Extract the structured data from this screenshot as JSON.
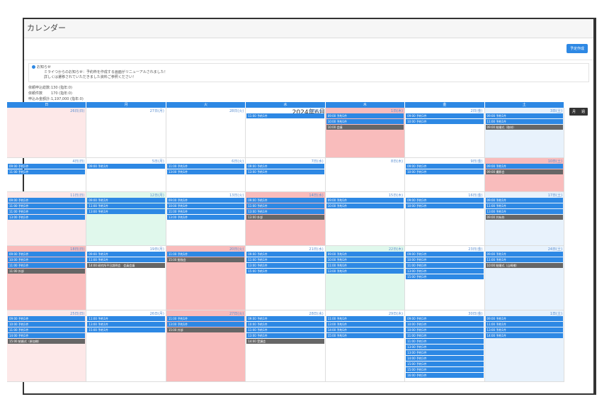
{
  "title": "カレンダー",
  "toolbar": {
    "create": "予定作成"
  },
  "notice": {
    "line1": "お知らせ",
    "line2": "ミライつからのお知らせ：予約枠を作成する画面がリニューアルされました！",
    "line3": "詳しくは遷移されていただきました資料ご参照ください！"
  },
  "stats": [
    {
      "k": "依頼申込総数:",
      "v": "130 (指年:0)"
    },
    {
      "k": "依頼件数",
      "v": "170 (指年:0)"
    },
    {
      "k": "申込み金額計:",
      "v": "1,197,000 (指年:0)"
    }
  ],
  "nav": {
    "prev": "‹",
    "today": "今日",
    "next": "›",
    "month": "2024年6月",
    "view_month": "月",
    "view_week": "週"
  },
  "weekdays": [
    "日",
    "月",
    "火",
    "水",
    "木",
    "金",
    "土"
  ],
  "weeks": [
    {
      "h": 70,
      "days": [
        {
          "n": "26日(日)",
          "bg": "sun",
          "ev": []
        },
        {
          "n": "27日(月)",
          "bg": "",
          "ev": []
        },
        {
          "n": "28日(火)",
          "bg": "",
          "ev": []
        },
        {
          "n": "29日(水)",
          "bg": "",
          "ev": [
            {
              "t": "11:00 予約1件"
            }
          ]
        },
        {
          "n": "1日(木)",
          "bg": "hol",
          "ev": [
            {
              "t": "09:00 予約1件"
            },
            {
              "t": "10:00 予約1件"
            },
            {
              "t": "10:00 会議",
              "g": 1
            }
          ]
        },
        {
          "n": "2日(金)",
          "bg": "",
          "ev": [
            {
              "t": "09:00 予約1件"
            },
            {
              "t": "10:00 予約1件"
            }
          ]
        },
        {
          "n": "3日(土)",
          "bg": "sat",
          "ev": [
            {
              "t": "09:00 予約1件"
            },
            {
              "t": "11:00 予約1件"
            },
            {
              "t": "09:00 結婚式（取材）",
              "g": 1
            }
          ]
        }
      ]
    },
    {
      "h": 47,
      "days": [
        {
          "n": "4日(日)",
          "bg": "",
          "ev": [
            {
              "t": "09:00 予約1件"
            },
            {
              "t": "11:00 予約1件"
            }
          ]
        },
        {
          "n": "5日(月)",
          "bg": "",
          "ev": [
            {
              "t": "09:00 予約1件"
            }
          ]
        },
        {
          "n": "6日(火)",
          "bg": "",
          "ev": [
            {
              "t": "11:00 予約1件"
            },
            {
              "t": "13:00 予約1件"
            }
          ]
        },
        {
          "n": "7日(水)",
          "bg": "",
          "ev": [
            {
              "t": "09:00 予約1件"
            },
            {
              "t": "13:00 予約1件"
            }
          ]
        },
        {
          "n": "8日(木)",
          "bg": "",
          "ev": []
        },
        {
          "n": "9日(金)",
          "bg": "",
          "ev": [
            {
              "t": "09:00 予約1件"
            },
            {
              "t": "10:00 予約1件"
            }
          ]
        },
        {
          "n": "10日(土)",
          "bg": "hol",
          "ev": [
            {
              "t": "09:00 予約1件"
            },
            {
              "t": "09:00 撮影会",
              "g": 1
            }
          ]
        }
      ]
    },
    {
      "h": 75,
      "days": [
        {
          "n": "11日(日)",
          "bg": "sun",
          "ev": [
            {
              "t": "09:00 予約1件"
            },
            {
              "t": "11:00 予約1件"
            },
            {
              "t": "11:00 予約1件"
            },
            {
              "t": "13:00 予約1件"
            }
          ]
        },
        {
          "n": "12日(月)",
          "bg": "green",
          "ev": [
            {
              "t": "09:00 予約1件"
            },
            {
              "t": "11:00 予約1件"
            },
            {
              "t": "13:00 予約1件"
            }
          ]
        },
        {
          "n": "13日(火)",
          "bg": "",
          "ev": [
            {
              "t": "09:00 予約1件"
            },
            {
              "t": "10:00 予約1件"
            },
            {
              "t": "11:00 予約1件"
            },
            {
              "t": "13:00 予約1件"
            }
          ]
        },
        {
          "n": "14日(水)",
          "bg": "hol",
          "ev": [
            {
              "t": "09:00 予約1件"
            },
            {
              "t": "11:00 予約1件"
            },
            {
              "t": "13:00 予約1件"
            },
            {
              "t": "13:00 外部",
              "g": 1
            }
          ]
        },
        {
          "n": "15日(木)",
          "bg": "",
          "ev": [
            {
              "t": "09:00 予約1件"
            },
            {
              "t": "10:00 予約1件"
            }
          ]
        },
        {
          "n": "16日(金)",
          "bg": "",
          "ev": [
            {
              "t": "09:00 予約1件"
            },
            {
              "t": "10:00 予約1件"
            }
          ]
        },
        {
          "n": "17日(土)",
          "bg": "sat",
          "ev": [
            {
              "t": "09:00 予約1件"
            },
            {
              "t": "11:00 予約1件"
            },
            {
              "t": "13:00 予約1件"
            },
            {
              "t": "09:00 共有枠",
              "g": 1
            }
          ]
        }
      ]
    },
    {
      "h": 90,
      "days": [
        {
          "n": "18日(日)",
          "bg": "hol",
          "ev": [
            {
              "t": "09:00 予約1件"
            },
            {
              "t": "10:00 予約1件"
            },
            {
              "t": "11:00 予約1件"
            },
            {
              "t": "11:00 外部",
              "g": 1
            }
          ]
        },
        {
          "n": "19日(月)",
          "bg": "",
          "ev": [
            {
              "t": "09:00 予約1件"
            },
            {
              "t": "11:00 予約1件"
            },
            {
              "t": "14:00 研究所平日説明会　会員会議",
              "g": 1
            }
          ]
        },
        {
          "n": "20日(火)",
          "bg": "hol",
          "ev": [
            {
              "t": "11:00 予約1件"
            },
            {
              "t": "15:00 勉強会",
              "g": 1
            }
          ]
        },
        {
          "n": "21日(水)",
          "bg": "",
          "ev": [
            {
              "t": "09:00 予約1件"
            },
            {
              "t": "11:00 予約1件"
            },
            {
              "t": "13:00 予約1件"
            },
            {
              "t": "15:00 予約1件"
            }
          ]
        },
        {
          "n": "22日(木)",
          "bg": "green",
          "ev": [
            {
              "t": "09:00 予約1件"
            },
            {
              "t": "10:00 予約1件"
            },
            {
              "t": "11:00 予約1件"
            },
            {
              "t": "13:00 予約1件"
            }
          ]
        },
        {
          "n": "23日(金)",
          "bg": "",
          "ev": [
            {
              "t": "09:00 予約1件"
            },
            {
              "t": "10:00 予約1件"
            },
            {
              "t": "11:00 予約1件"
            },
            {
              "t": "13:00 予約1件"
            },
            {
              "t": "15:00 予約1件"
            }
          ]
        },
        {
          "n": "24日(土)",
          "bg": "sat",
          "ev": [
            {
              "t": "09:00 予約1件"
            },
            {
              "t": "11:00 予約1件"
            },
            {
              "t": "10:00 結婚式（山崎様）",
              "g": 1
            }
          ]
        }
      ]
    },
    {
      "h": 100,
      "days": [
        {
          "n": "25日(日)",
          "bg": "sun",
          "ev": [
            {
              "t": "09:00 予約1件"
            },
            {
              "t": "10:00 予約1件"
            },
            {
              "t": "11:00 予約1件"
            },
            {
              "t": "14:00 予約1件"
            },
            {
              "t": "15:00 結婚式（参加様）",
              "g": 1
            }
          ]
        },
        {
          "n": "26日(月)",
          "bg": "",
          "ev": [
            {
              "t": "11:00 予約1件"
            },
            {
              "t": "13:00 予約1件"
            },
            {
              "t": "15:00 予約1件"
            }
          ]
        },
        {
          "n": "27日(火)",
          "bg": "hol",
          "ev": [
            {
              "t": "11:00 予約1件"
            },
            {
              "t": "13:00 予約1件"
            },
            {
              "t": "15:00 外部",
              "g": 1
            }
          ]
        },
        {
          "n": "28日(水)",
          "bg": "",
          "ev": [
            {
              "t": "09:00 予約1件"
            },
            {
              "t": "10:00 予約1件"
            },
            {
              "t": "11:00 予約1件"
            },
            {
              "t": "13:00 予約1件"
            },
            {
              "t": "14:00 受講会",
              "g": 1
            }
          ]
        },
        {
          "n": "29日(木)",
          "bg": "",
          "ev": [
            {
              "t": "11:00 予約1件"
            },
            {
              "t": "13:00 予約1件"
            },
            {
              "t": "14:00 予約1件"
            },
            {
              "t": "15:00 予約1件"
            }
          ]
        },
        {
          "n": "30日(金)",
          "bg": "",
          "ev": [
            {
              "t": "09:00 予約1件"
            },
            {
              "t": "10:00 予約1件"
            },
            {
              "t": "10:00 予約1件"
            },
            {
              "t": "11:00 予約1件"
            },
            {
              "t": "11:00 予約1件"
            },
            {
              "t": "13:00 予約1件"
            },
            {
              "t": "13:00 予約1件"
            },
            {
              "t": "14:00 予約1件"
            },
            {
              "t": "15:00 予約1件"
            },
            {
              "t": "15:00 予約1件"
            },
            {
              "t": "16:00 予約1件"
            }
          ]
        },
        {
          "n": "1日(土)",
          "bg": "sat",
          "ev": [
            {
              "t": "09:00 予約1件"
            },
            {
              "t": "11:00 予約1件"
            },
            {
              "t": "13:00 予約1件"
            },
            {
              "t": "14:00 予約1件"
            }
          ]
        }
      ]
    }
  ]
}
